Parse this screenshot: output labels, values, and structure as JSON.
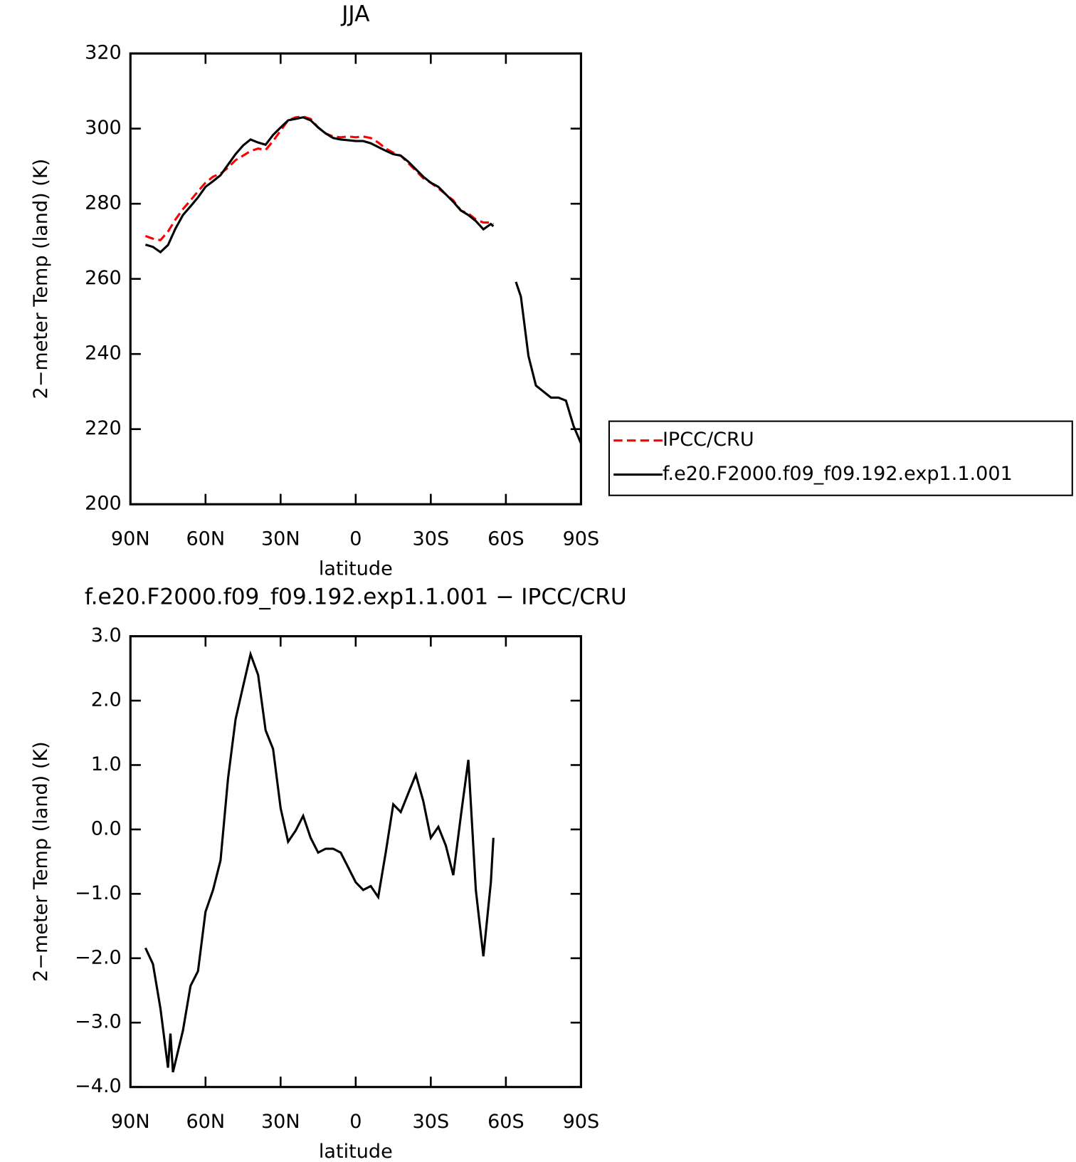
{
  "chart_data": [
    {
      "type": "line",
      "title": "JJA",
      "xlabel": "latitude",
      "ylabel": "2−meter Temp (land) (K)",
      "x": [
        84,
        81,
        78,
        75,
        72,
        69,
        66,
        63,
        60,
        57,
        54,
        51,
        48,
        45,
        42,
        39,
        36,
        33,
        30,
        27,
        24,
        21,
        18,
        15,
        12,
        9,
        6,
        3,
        0,
        -3,
        -6,
        -9,
        -12,
        -15,
        -18,
        -21,
        -24,
        -27,
        -30,
        -33,
        -36,
        -39,
        -42,
        -45,
        -48,
        -51,
        -54,
        -55,
        -60,
        -64,
        -66,
        -69,
        -72,
        -75,
        -78,
        -81,
        -84,
        -87,
        -90
      ],
      "series": [
        {
          "name": "IPCC/CRU",
          "color": "#ff0000",
          "dash": true,
          "values": [
            271.4,
            270.7,
            270.3,
            272.6,
            275.8,
            278.6,
            280.9,
            283.3,
            285.6,
            287.2,
            288,
            289.6,
            291.6,
            292.8,
            294,
            294.7,
            294.3,
            296.7,
            299.5,
            302.2,
            303,
            303.2,
            302.6,
            300.3,
            298.7,
            297.9,
            297.7,
            297.9,
            297.7,
            297.9,
            297.5,
            296.3,
            294.7,
            293.6,
            292.8,
            290.8,
            288.8,
            286.8,
            285.6,
            284.1,
            282.5,
            280.9,
            278.2,
            277.4,
            275.8,
            275,
            275,
            274.6,
            null,
            null,
            null,
            null,
            null,
            null,
            null,
            null,
            null,
            null,
            null
          ]
        },
        {
          "name": "f.e20.F2000.f09_f09.192.exp1.1.001",
          "color": "#000000",
          "dash": false,
          "values": [
            269.1,
            268.5,
            267.1,
            269,
            273.4,
            277,
            279.3,
            281.7,
            284.5,
            286,
            287.6,
            290.4,
            293.2,
            295.5,
            297.1,
            296.3,
            295.7,
            298.3,
            300.3,
            302.2,
            302.6,
            303,
            302.2,
            300.3,
            298.7,
            297.5,
            297.1,
            296.9,
            296.7,
            296.7,
            296.1,
            295.1,
            294.1,
            293.2,
            292.8,
            291.2,
            289.2,
            287.2,
            285.6,
            284.5,
            282.5,
            280.5,
            278.2,
            277,
            275.4,
            273.2,
            274.6,
            274,
            null,
            259.2,
            255.3,
            239.5,
            231.6,
            230,
            228.4,
            228.4,
            227.6,
            220.9,
            216.2
          ]
        }
      ],
      "xlim": [
        90,
        -90
      ],
      "xticks": [
        {
          "value": 90,
          "label": "90N"
        },
        {
          "value": 60,
          "label": "60N"
        },
        {
          "value": 30,
          "label": "30N"
        },
        0,
        {
          "value": -30,
          "label": "30S"
        },
        {
          "value": -60,
          "label": "60S"
        },
        {
          "value": -90,
          "label": "90S"
        }
      ],
      "ylim": [
        200,
        320
      ],
      "yticks": [
        200,
        220,
        240,
        260,
        280,
        300,
        320
      ],
      "legend": "right"
    },
    {
      "type": "line",
      "title": "f.e20.F2000.f09_f09.192.exp1.1.001 − IPCC/CRU",
      "xlabel": "latitude",
      "ylabel": "2−meter Temp (land) (K)",
      "x": [
        84,
        81,
        78,
        75,
        74,
        73,
        69,
        66,
        63,
        60,
        57,
        54,
        51,
        48,
        45,
        42,
        39,
        36,
        33,
        30,
        27,
        24,
        21,
        18,
        15,
        12,
        9,
        6,
        3,
        0,
        -3,
        -6,
        -9,
        -12,
        -15,
        -18,
        -21,
        -24,
        -27,
        -30,
        -33,
        -36,
        -39,
        -42,
        -45,
        -48,
        -51,
        -54,
        -55
      ],
      "values": [
        -1.84,
        -2.09,
        -2.78,
        -3.7,
        -3.17,
        -3.77,
        -3.12,
        -2.43,
        -2.2,
        -1.28,
        -0.94,
        -0.48,
        0.79,
        1.71,
        2.22,
        2.72,
        2.4,
        1.54,
        1.25,
        0.33,
        -0.19,
        -0.02,
        0.21,
        -0.13,
        -0.36,
        -0.3,
        -0.3,
        -0.36,
        -0.59,
        -0.82,
        -0.94,
        -0.88,
        -1.05,
        -0.36,
        0.39,
        0.27,
        0.56,
        0.85,
        0.44,
        -0.13,
        0.04,
        -0.25,
        -0.71,
        0.21,
        1.08,
        -0.94,
        -1.97,
        -0.82,
        -0.13
      ],
      "color": "#000000",
      "xlim": [
        90,
        -90
      ],
      "xticks": [
        {
          "value": 90,
          "label": "90N"
        },
        {
          "value": 60,
          "label": "60N"
        },
        {
          "value": 30,
          "label": "30N"
        },
        0,
        {
          "value": -30,
          "label": "30S"
        },
        {
          "value": -60,
          "label": "60S"
        },
        {
          "value": -90,
          "label": "90S"
        }
      ],
      "ylim": [
        -4,
        3
      ],
      "yticks": [
        {
          "value": -4,
          "label": "−4.0"
        },
        {
          "value": -3,
          "label": "−3.0"
        },
        {
          "value": -2,
          "label": "−2.0"
        },
        {
          "value": -1,
          "label": "−1.0"
        },
        {
          "value": 0,
          "label": "0.0"
        },
        {
          "value": 1,
          "label": "1.0"
        },
        {
          "value": 2,
          "label": "2.0"
        },
        {
          "value": 3,
          "label": "3.0"
        }
      ]
    }
  ]
}
